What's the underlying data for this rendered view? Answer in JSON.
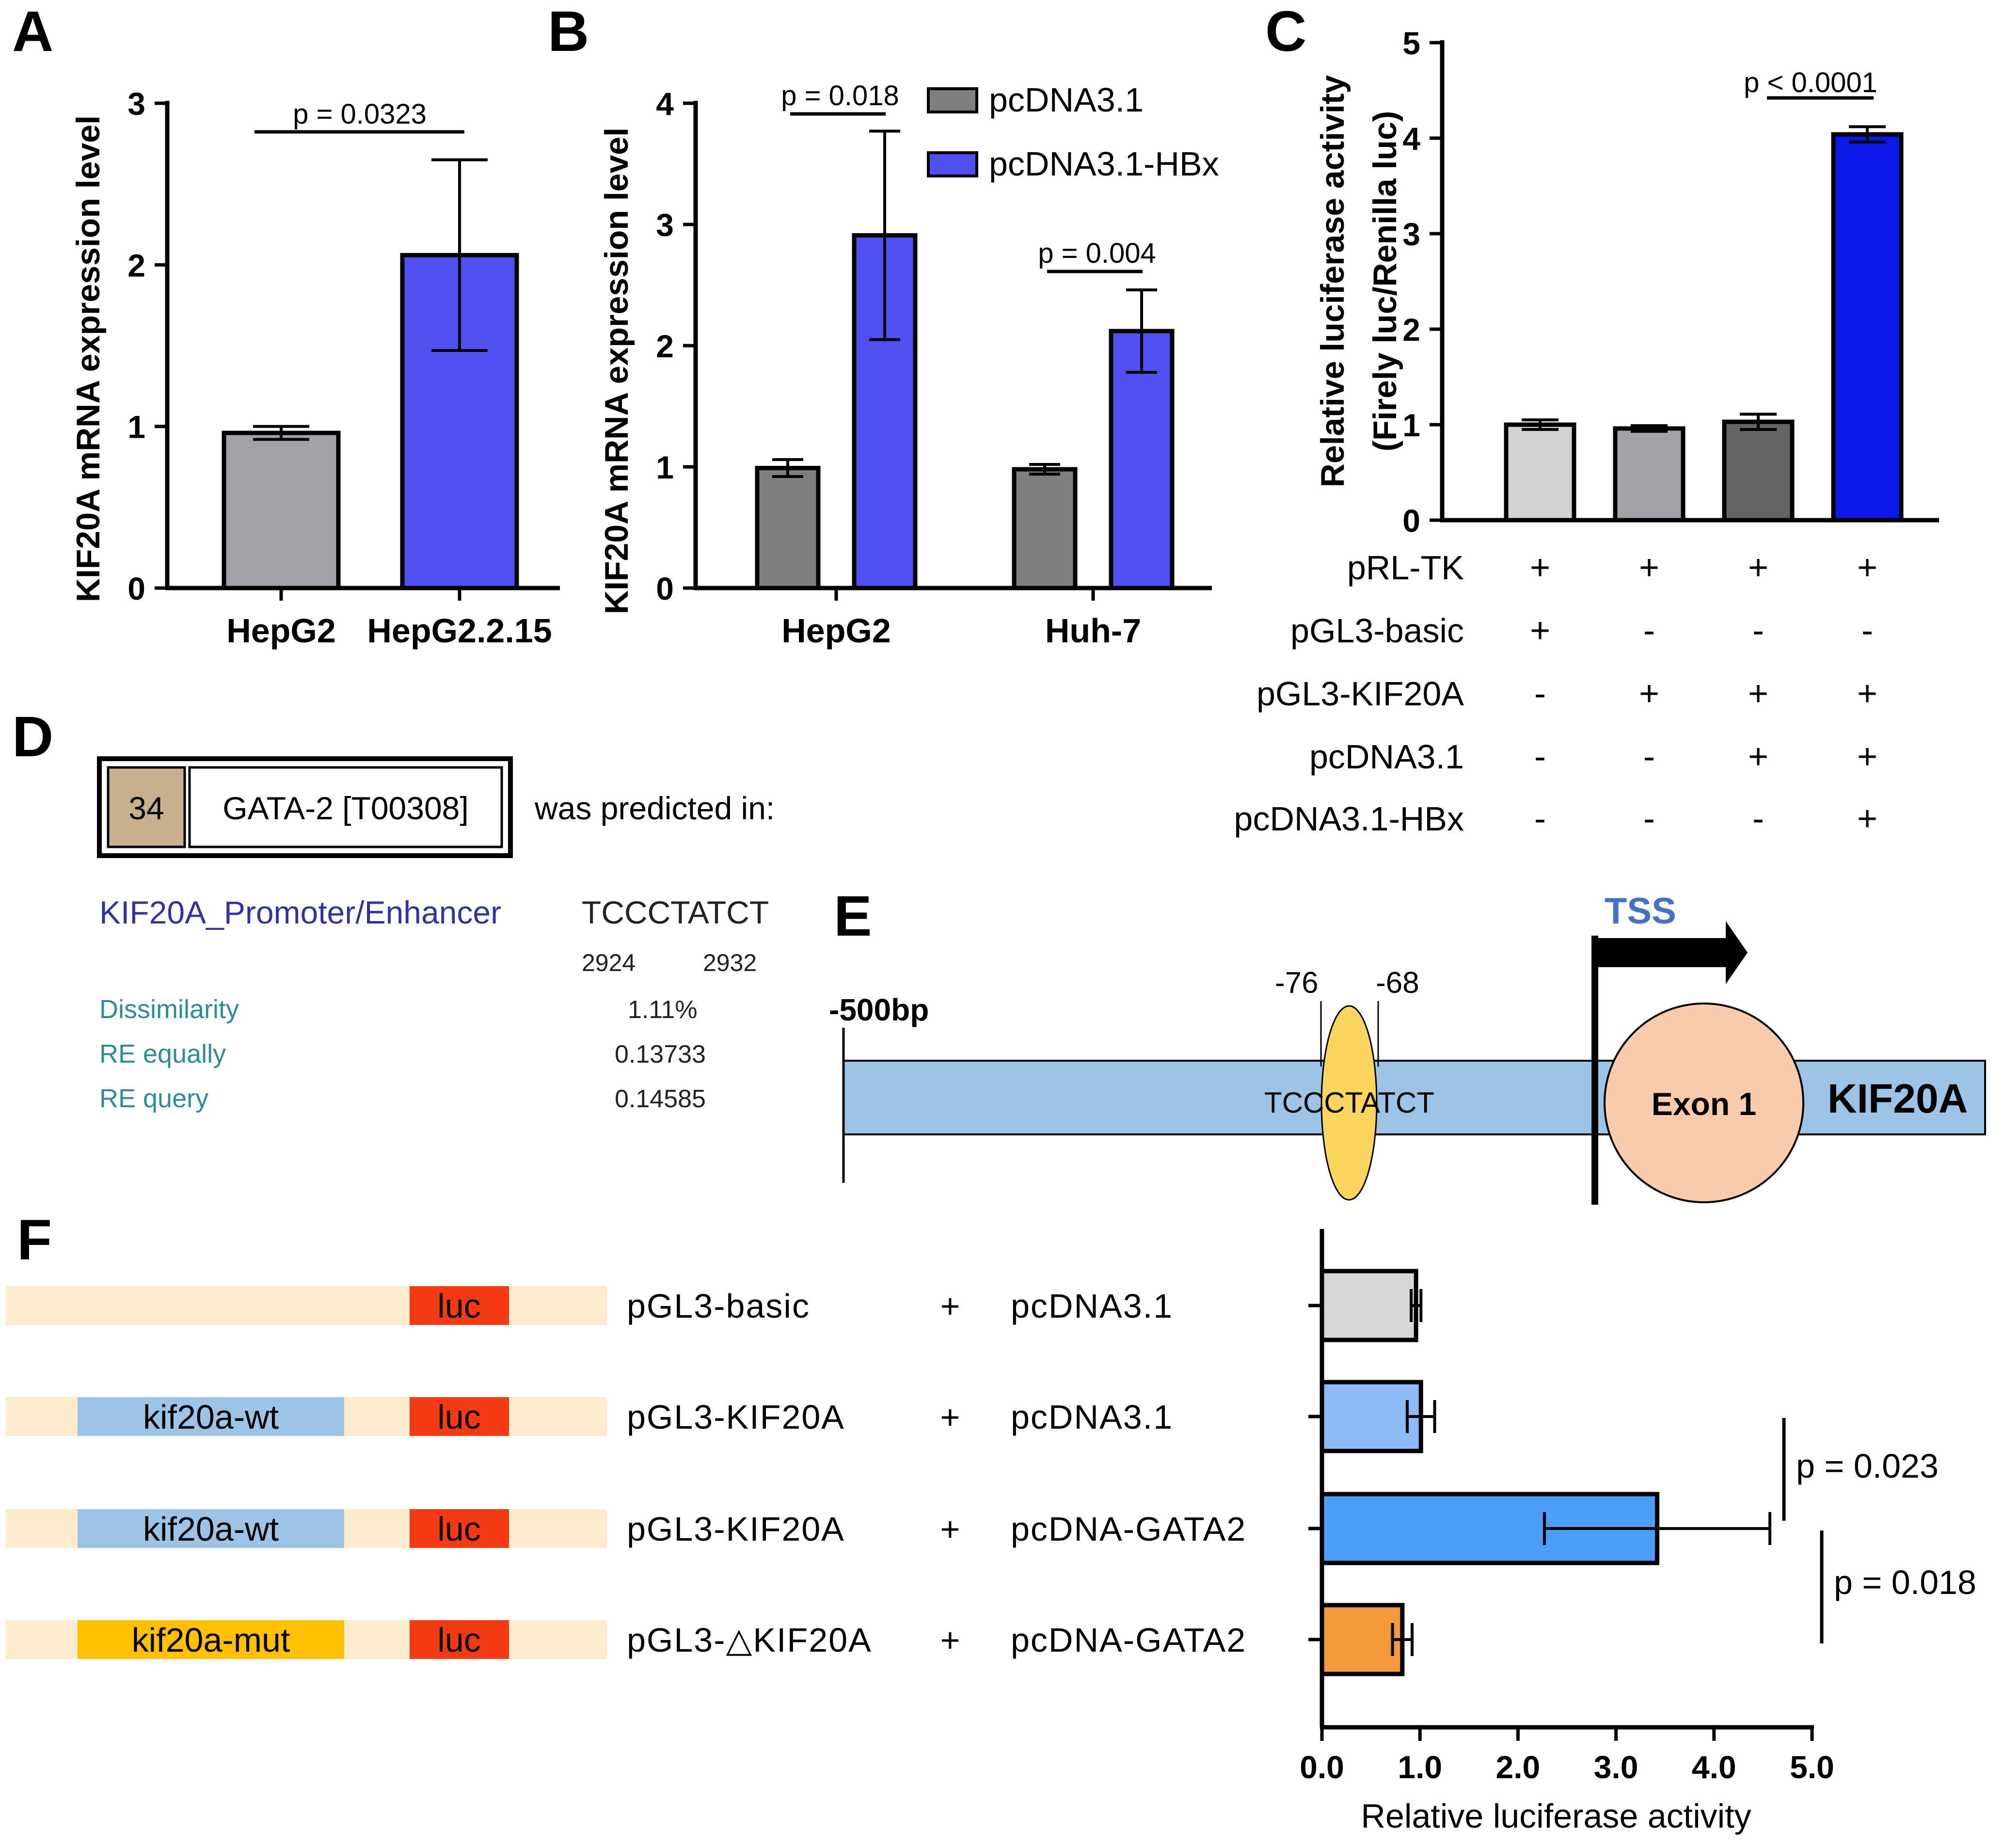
{
  "colors": {
    "grey_light": "#d3d3d3",
    "grey_mid": "#a3a2a8",
    "grey_dark": "#646464",
    "grey_bar": "#7f7f7f",
    "blue_bar": "#5050f0",
    "blue_bright": "#0a18e8",
    "beige_bg": "#fdebcd",
    "luc_red": "#f43a12",
    "wt_blue": "#9dc3e6",
    "mut_gold": "#ffc000",
    "promoter_blue": "#9dc3e6",
    "ellipse_yellow": "#fcd55f",
    "exon_peach": "#f8cbad",
    "transfac_tan": "#c8b08f",
    "transfac_blue_text": "#3232a0",
    "transfac_teal_text": "#2f8a99",
    "tss_blue": "#4472c4",
    "f_grey": "#d7d7d7",
    "f_lightblue": "#8fbaf8",
    "f_blue": "#4d9ef9",
    "f_orange": "#f59a3b"
  },
  "panels": {
    "A": "A",
    "B": "B",
    "C": "C",
    "D": "D",
    "E": "E",
    "F": "F"
  },
  "chart_data": [
    {
      "id": "A",
      "type": "bar",
      "title": "",
      "ylabel": "KIF20A mRNA expression level",
      "xlabel": "",
      "ylim": [
        0,
        3
      ],
      "yticks": [
        "0",
        "1",
        "2",
        "3"
      ],
      "categories": [
        "HepG2",
        "HepG2.2.15"
      ],
      "values": [
        0.96,
        2.06
      ],
      "errors": [
        0.04,
        0.59
      ],
      "bar_colors": [
        "#a3a2a8",
        "#5050f0"
      ],
      "annotations": [
        {
          "text": "p = 0.0323",
          "from": 0,
          "to": 1
        }
      ]
    },
    {
      "id": "B",
      "type": "bar",
      "title": "",
      "ylabel": "KIF20A mRNA expression level",
      "xlabel": "",
      "ylim": [
        0,
        4
      ],
      "yticks": [
        "0",
        "1",
        "2",
        "3",
        "4"
      ],
      "categories": [
        "HepG2",
        "Huh-7"
      ],
      "series": [
        {
          "name": "pcDNA3.1",
          "values": [
            0.99,
            0.98
          ],
          "errors": [
            0.07,
            0.04
          ],
          "color": "#7f7f7f"
        },
        {
          "name": "pcDNA3.1-HBx",
          "values": [
            2.91,
            2.12
          ],
          "errors": [
            0.86,
            0.34
          ],
          "color": "#5050f0"
        }
      ],
      "annotations": [
        {
          "text": "p = 0.018",
          "group": 0
        },
        {
          "text": "p = 0.004",
          "group": 1
        }
      ],
      "legend_position": "top-right"
    },
    {
      "id": "C",
      "type": "bar",
      "title": "",
      "ylabel": "Relative luciferase activity",
      "ylabel2": "(Firely luc/Renilla luc)",
      "ylim": [
        0,
        5
      ],
      "yticks": [
        "0",
        "1",
        "2",
        "3",
        "4",
        "5"
      ],
      "values": [
        1.0,
        0.96,
        1.03,
        4.04
      ],
      "errors": [
        0.05,
        0.03,
        0.08,
        0.08
      ],
      "bar_colors": [
        "#d3d3d3",
        "#a3a2a8",
        "#646464",
        "#0a18e8"
      ],
      "annotations": [
        {
          "text": "p < 0.0001",
          "from": 2,
          "to": 3
        }
      ],
      "table_rows": [
        {
          "label": "pRL-TK",
          "signs": [
            "+",
            "+",
            "+",
            "+"
          ]
        },
        {
          "label": "pGL3-basic",
          "signs": [
            "+",
            "-",
            "-",
            "-"
          ]
        },
        {
          "label": "pGL3-KIF20A",
          "signs": [
            "-",
            "+",
            "+",
            "+"
          ]
        },
        {
          "label": "pcDNA3.1",
          "signs": [
            "-",
            "-",
            "+",
            "+"
          ]
        },
        {
          "label": "pcDNA3.1-HBx",
          "signs": [
            "-",
            "-",
            "-",
            "+"
          ]
        }
      ]
    },
    {
      "id": "F",
      "type": "bar",
      "orientation": "horizontal",
      "title": "",
      "xlabel": "Relative luciferase activity",
      "xlim": [
        0,
        5
      ],
      "xticks": [
        "0.0",
        "1.0",
        "2.0",
        "3.0",
        "4.0",
        "5.0"
      ],
      "values": [
        0.96,
        1.01,
        3.42,
        0.82
      ],
      "errors": [
        0.05,
        0.14,
        1.15,
        0.1
      ],
      "bar_colors": [
        "#d7d7d7",
        "#8fbaf8",
        "#4d9ef9",
        "#f59a3b"
      ],
      "annotations": [
        {
          "text": "p = 0.023",
          "from": 1,
          "to": 2
        },
        {
          "text": "p = 0.018",
          "from": 2,
          "to": 3
        }
      ],
      "constructs": [
        {
          "insert": "",
          "luc": "luc",
          "plasmid": "pGL3-basic",
          "plus": "+",
          "effector": "pcDNA3.1"
        },
        {
          "insert": "kif20a-wt",
          "luc": "luc",
          "plasmid": "pGL3-KIF20A",
          "plus": "+",
          "effector": "pcDNA3.1"
        },
        {
          "insert": "kif20a-wt",
          "luc": "luc",
          "plasmid": "pGL3-KIF20A",
          "plus": "+",
          "effector": "pcDNA-GATA2"
        },
        {
          "insert": "kif20a-mut",
          "luc": "luc",
          "plasmid": "pGL3-△KIF20A",
          "plus": "+",
          "effector": "pcDNA-GATA2"
        }
      ]
    }
  ],
  "panel_d": {
    "score": "34",
    "factor": "GATA-2 [T00308]",
    "predicted_text": "was predicted in:",
    "site_name": "KIF20A_Promoter/Enhancer",
    "sequence": "TCCCTATCT",
    "pos_start": "2924",
    "pos_end": "2932",
    "rows": [
      {
        "label": "Dissimilarity",
        "value": "1.11%"
      },
      {
        "label": "RE equally",
        "value": "0.13733"
      },
      {
        "label": "RE query",
        "value": "0.14585"
      }
    ]
  },
  "panel_e": {
    "tss": "TSS",
    "pos_a": "-76",
    "pos_b": "-68",
    "start": "-500bp",
    "site": "TCCCTATCT",
    "exon": "Exon 1",
    "gene": "KIF20A"
  }
}
